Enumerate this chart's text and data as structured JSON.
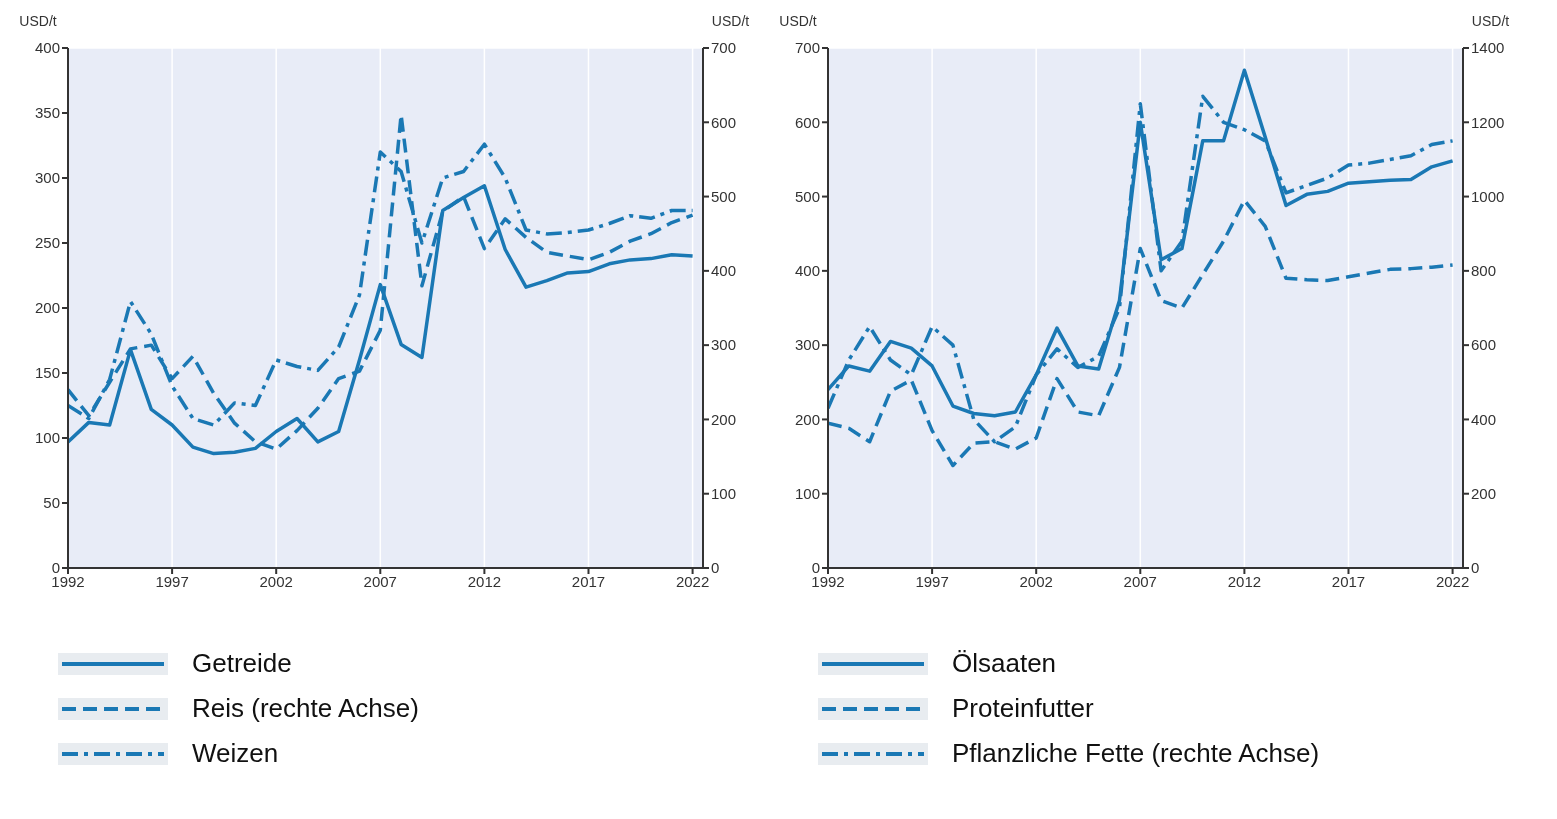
{
  "chart_data": [
    {
      "type": "line",
      "ylabel": "USD/t",
      "y2label": "USD/t",
      "x": [
        1992,
        1993,
        1994,
        1995,
        1996,
        1997,
        1998,
        1999,
        2000,
        2001,
        2002,
        2003,
        2004,
        2005,
        2006,
        2007,
        2008,
        2009,
        2010,
        2011,
        2012,
        2013,
        2014,
        2015,
        2016,
        2017,
        2018,
        2019,
        2020,
        2021,
        2022
      ],
      "xlim": [
        1992,
        2022.5
      ],
      "xticks": [
        1992,
        1997,
        2002,
        2007,
        2012,
        2017,
        2022
      ],
      "ylim": [
        0,
        400
      ],
      "yticks": [
        0,
        50,
        100,
        150,
        200,
        250,
        300,
        350,
        400
      ],
      "y2lim": [
        0,
        700
      ],
      "y2ticks": [
        0,
        100,
        200,
        300,
        400,
        500,
        600,
        700
      ],
      "grid": true,
      "legend": "bottom",
      "marker": "none",
      "series": [
        {
          "name": "Getreide",
          "color": "#1a78b4",
          "line_style": "solid",
          "values": [
            97,
            112,
            110,
            168,
            122,
            110,
            93,
            88,
            89,
            92,
            105,
            115,
            97,
            105,
            160,
            218,
            172,
            162,
            275,
            285,
            294,
            245,
            216,
            221,
            227,
            228,
            234,
            237,
            238,
            241,
            240
          ]
        },
        {
          "name": "Reis (rechte Achse)",
          "color": "#1a78b4",
          "line_style": "dashed",
          "axis": "y2",
          "values": [
            240,
            205,
            250,
            295,
            300,
            255,
            285,
            235,
            195,
            170,
            160,
            185,
            215,
            255,
            265,
            320,
            610,
            380,
            480,
            500,
            430,
            470,
            445,
            425,
            420,
            415,
            425,
            440,
            450,
            465,
            475
          ]
        },
        {
          "name": "Weizen",
          "color": "#1a78b4",
          "line_style": "dashdot",
          "values": [
            125,
            115,
            145,
            205,
            180,
            140,
            115,
            110,
            127,
            125,
            160,
            155,
            152,
            170,
            210,
            320,
            305,
            250,
            300,
            305,
            326,
            300,
            260,
            257,
            258,
            260,
            265,
            271,
            269,
            275,
            275
          ]
        }
      ]
    },
    {
      "type": "line",
      "ylabel": "USD/t",
      "y2label": "USD/t",
      "x": [
        1992,
        1993,
        1994,
        1995,
        1996,
        1997,
        1998,
        1999,
        2000,
        2001,
        2002,
        2003,
        2004,
        2005,
        2006,
        2007,
        2008,
        2009,
        2010,
        2011,
        2012,
        2013,
        2014,
        2015,
        2016,
        2017,
        2018,
        2019,
        2020,
        2021,
        2022
      ],
      "xlim": [
        1992,
        2022.5
      ],
      "xticks": [
        1992,
        1997,
        2002,
        2007,
        2012,
        2017,
        2022
      ],
      "ylim": [
        0,
        700
      ],
      "yticks": [
        0,
        100,
        200,
        300,
        400,
        500,
        600,
        700
      ],
      "y2lim": [
        0,
        1400
      ],
      "y2ticks": [
        0,
        200,
        400,
        600,
        800,
        1000,
        1200,
        1400
      ],
      "grid": true,
      "legend": "bottom",
      "marker": "none",
      "series": [
        {
          "name": "Ölsaaten",
          "color": "#1a78b4",
          "line_style": "solid",
          "values": [
            240,
            272,
            265,
            305,
            296,
            272,
            218,
            208,
            205,
            210,
            260,
            323,
            272,
            268,
            360,
            600,
            415,
            430,
            575,
            575,
            670,
            580,
            488,
            503,
            507,
            518,
            520,
            522,
            523,
            540,
            548
          ]
        },
        {
          "name": "Proteinfutter",
          "color": "#1a78b4",
          "line_style": "dashed",
          "values": [
            195,
            188,
            170,
            238,
            253,
            185,
            138,
            168,
            170,
            160,
            175,
            255,
            210,
            205,
            270,
            430,
            360,
            350,
            395,
            440,
            495,
            460,
            390,
            388,
            387,
            392,
            397,
            402,
            403,
            405,
            408
          ]
        },
        {
          "name": "Pflanzliche Fette (rechte Achse)",
          "color": "#1a78b4",
          "line_style": "dashdot",
          "axis": "y2",
          "values": [
            430,
            560,
            650,
            560,
            520,
            650,
            600,
            400,
            340,
            380,
            520,
            590,
            540,
            570,
            700,
            1250,
            800,
            880,
            1270,
            1200,
            1180,
            1150,
            1010,
            1030,
            1050,
            1085,
            1090,
            1100,
            1110,
            1140,
            1150
          ]
        }
      ]
    }
  ]
}
